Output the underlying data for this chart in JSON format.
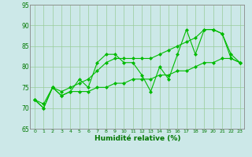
{
  "x": [
    0,
    1,
    2,
    3,
    4,
    5,
    6,
    7,
    8,
    9,
    10,
    11,
    12,
    13,
    14,
    15,
    16,
    17,
    18,
    19,
    20,
    21,
    22,
    23
  ],
  "line_zigzag": [
    72,
    70,
    75,
    73,
    74,
    77,
    75,
    81,
    83,
    83,
    81,
    81,
    78,
    74,
    80,
    77,
    83,
    89,
    83,
    89,
    89,
    88,
    82,
    81
  ],
  "line_trend": [
    72,
    70,
    75,
    73,
    74,
    74,
    74,
    75,
    75,
    76,
    76,
    77,
    77,
    77,
    78,
    78,
    79,
    79,
    80,
    81,
    81,
    82,
    82,
    81
  ],
  "line_upper": [
    72,
    71,
    75,
    74,
    75,
    76,
    77,
    79,
    81,
    82,
    82,
    82,
    82,
    82,
    83,
    84,
    85,
    86,
    87,
    89,
    89,
    88,
    83,
    81
  ],
  "line_color": "#00bb00",
  "marker_color": "#00bb00",
  "bg_color": "#cce8e8",
  "grid_color": "#99cc99",
  "axis_color": "#888888",
  "xlabel": "Humidité relative (%)",
  "xlabel_color": "#007700",
  "tick_color": "#007700",
  "ylim": [
    65,
    95
  ],
  "xlim": [
    -0.5,
    23.5
  ],
  "yticks": [
    65,
    70,
    75,
    80,
    85,
    90,
    95
  ],
  "xticks": [
    0,
    1,
    2,
    3,
    4,
    5,
    6,
    7,
    8,
    9,
    10,
    11,
    12,
    13,
    14,
    15,
    16,
    17,
    18,
    19,
    20,
    21,
    22,
    23
  ]
}
